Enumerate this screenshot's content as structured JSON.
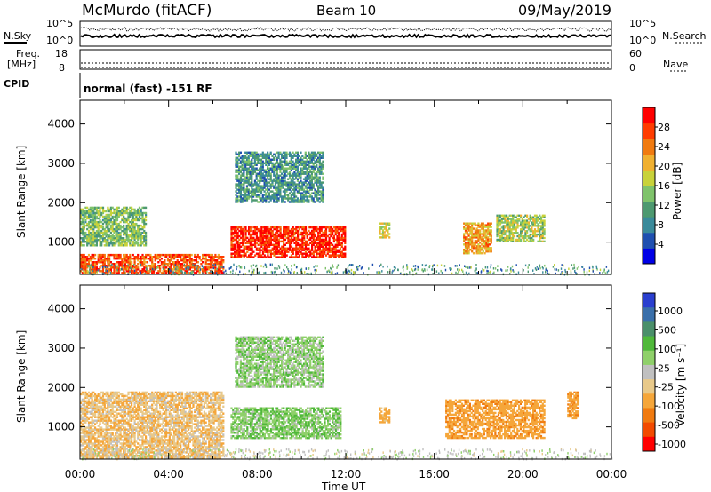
{
  "header": {
    "station": "McMurdo (fitACF)",
    "beam": "Beam 10",
    "date": "09/May/2019"
  },
  "top_panels": {
    "nsky_label": "N.Sky",
    "nsearch_label": "N.Search",
    "noise_ticks": [
      "10^5",
      "10^0"
    ],
    "freq_label": "Freq.",
    "freq_unit": "[MHz]",
    "freq_ticks": [
      "18",
      "8"
    ],
    "nave_label": "Nave",
    "nave_ticks": [
      "60",
      "0"
    ],
    "cpid_label": "CPID",
    "cpid_text": "normal (fast) -151 RF"
  },
  "colors": {
    "power_scale": [
      "#0000e6",
      "#1f4fb0",
      "#3a8a9a",
      "#4d9970",
      "#7fc36b",
      "#c8d23a",
      "#f0b030",
      "#f07a10",
      "#ff3c00",
      "#ff0000"
    ],
    "velocity_scale": [
      "#ff0000",
      "#f24a00",
      "#f07a10",
      "#f5a63a",
      "#e8c98a",
      "#c0c0c0",
      "#8fd06a",
      "#4fb83a",
      "#4a8f6a",
      "#3a6faa",
      "#2a3fcf"
    ]
  },
  "chart_data": [
    {
      "type": "heatmap",
      "title": "",
      "xlabel": "Time UT",
      "ylabel": "Slant Range [km]",
      "x_ticks": [
        "00:00",
        "04:00",
        "08:00",
        "12:00",
        "16:00",
        "20:00",
        "00:00"
      ],
      "xlim_hours": [
        0,
        24
      ],
      "y_ticks": [
        1000,
        2000,
        3000,
        4000
      ],
      "ylim": [
        180,
        4600
      ],
      "colorbar_label": "Power [dB]",
      "colorbar_ticks": [
        4,
        8,
        12,
        16,
        20,
        24,
        28
      ],
      "colorbar_range": [
        0,
        32
      ],
      "echo_regions": [
        {
          "t0": 0.0,
          "t1": 6.5,
          "r0": 200,
          "r1": 700,
          "value": 26
        },
        {
          "t0": 6.8,
          "t1": 12.0,
          "r0": 600,
          "r1": 1400,
          "value": 29
        },
        {
          "t0": 0.0,
          "t1": 3.0,
          "r0": 900,
          "r1": 1900,
          "value": 14
        },
        {
          "t0": 13.5,
          "t1": 14.0,
          "r0": 1100,
          "r1": 1500,
          "value": 18
        },
        {
          "t0": 17.3,
          "t1": 18.6,
          "r0": 700,
          "r1": 1500,
          "value": 22
        },
        {
          "t0": 18.8,
          "t1": 21.0,
          "r0": 1000,
          "r1": 1700,
          "value": 16
        },
        {
          "t0": 7.0,
          "t1": 11.0,
          "r0": 2000,
          "r1": 3300,
          "value": 10
        }
      ]
    },
    {
      "type": "heatmap",
      "title": "",
      "xlabel": "Time UT",
      "ylabel": "Slant Range [km]",
      "x_ticks": [
        "00:00",
        "04:00",
        "08:00",
        "12:00",
        "16:00",
        "20:00",
        "00:00"
      ],
      "xlim_hours": [
        0,
        24
      ],
      "y_ticks": [
        1000,
        2000,
        3000,
        4000
      ],
      "ylim": [
        180,
        4600
      ],
      "colorbar_label": "Velocity [m s⁻¹]",
      "colorbar_ticks": [
        "1000",
        "500",
        "100",
        "25",
        "-25",
        "-100",
        "-500",
        "-1000"
      ],
      "echo_regions": [
        {
          "t0": 0.0,
          "t1": 6.5,
          "r0": 200,
          "r1": 1900,
          "value": -80
        },
        {
          "t0": 6.8,
          "t1": 11.8,
          "r0": 700,
          "r1": 1500,
          "value": 80
        },
        {
          "t0": 13.5,
          "t1": 14.0,
          "r0": 1100,
          "r1": 1500,
          "value": -150
        },
        {
          "t0": 16.5,
          "t1": 21.0,
          "r0": 700,
          "r1": 1700,
          "value": -200
        },
        {
          "t0": 22.0,
          "t1": 22.5,
          "r0": 1200,
          "r1": 1900,
          "value": -200
        },
        {
          "t0": 7.0,
          "t1": 11.0,
          "r0": 2000,
          "r1": 3300,
          "value": 60
        }
      ]
    }
  ]
}
